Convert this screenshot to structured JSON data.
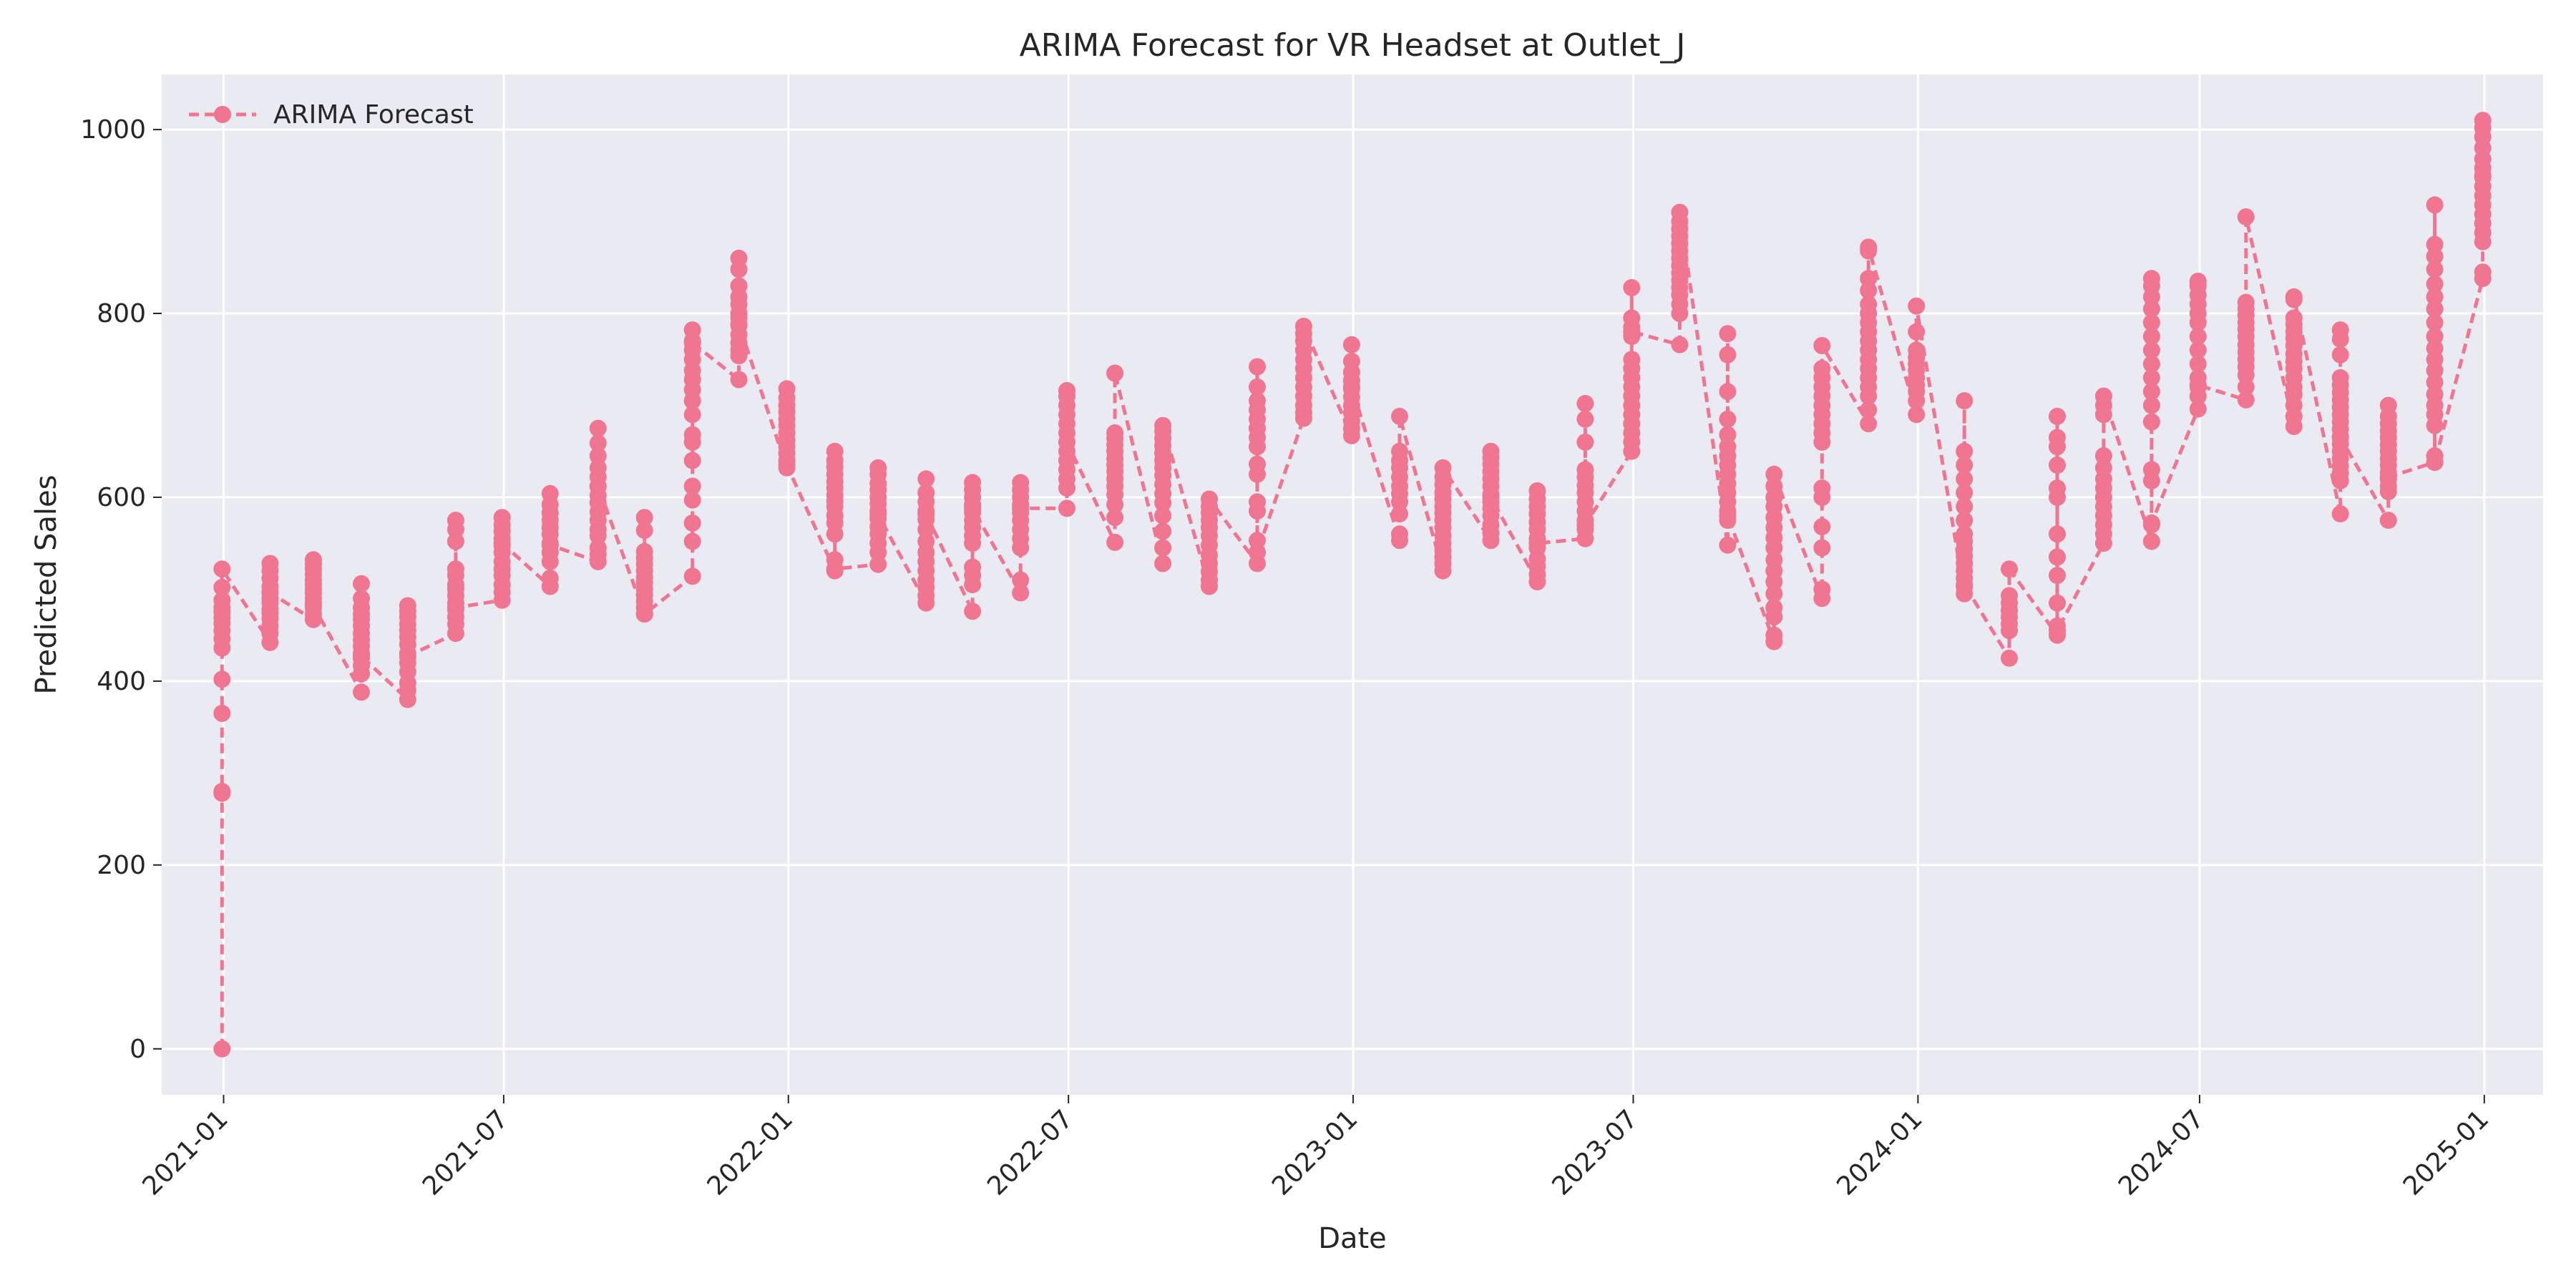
{
  "chart_data": {
    "type": "line",
    "title": "ARIMA Forecast for VR Headset at Outlet_J",
    "xlabel": "Date",
    "ylabel": "Predicted Sales",
    "x_ticks": [
      "2021-01",
      "2021-07",
      "2022-01",
      "2022-07",
      "2023-01",
      "2023-07",
      "2024-01",
      "2024-07",
      "2025-01"
    ],
    "y_ticks": [
      "0",
      "200",
      "400",
      "600",
      "800",
      "1000"
    ],
    "xlim": [
      "2020-11-22",
      "2025-02-08"
    ],
    "ylim": [
      -50,
      1060
    ],
    "grid": true,
    "legend_position": "top-left",
    "series": [
      {
        "name": "ARIMA Forecast",
        "color": "#F07590",
        "marker": "circle",
        "line_style": "dashed",
        "points": [
          {
            "date": "2020-12-31",
            "values": [
              0,
              280,
              278,
              365,
              402,
              436,
              446,
              455,
              463,
              469,
              475,
              480,
              488,
              502,
              522
            ]
          },
          {
            "date": "2021-01-31",
            "values": [
              442,
              452,
              460,
              468,
              474,
              478,
              485,
              490,
              497,
              503,
              512,
              520,
              528,
              496
            ]
          },
          {
            "date": "2021-02-28",
            "values": [
              467,
              473,
              480,
              485,
              490,
              496,
              500,
              505,
              510,
              516,
              522,
              527,
              532,
              482
            ]
          },
          {
            "date": "2021-03-31",
            "values": [
              388,
              408,
              417,
              425,
              430,
              438,
              445,
              452,
              460,
              467,
              473,
              480,
              490,
              506,
              427
            ]
          },
          {
            "date": "2021-04-30",
            "values": [
              380,
              390,
              398,
              410,
              420,
              430,
              440,
              448,
              455,
              462,
              470,
              476,
              482,
              427
            ]
          },
          {
            "date": "2021-05-31",
            "values": [
              452,
              462,
              470,
              478,
              485,
              493,
              500,
              505,
              515,
              522,
              552,
              565,
              575,
              480
            ]
          },
          {
            "date": "2021-06-30",
            "values": [
              488,
              497,
              505,
              515,
              522,
              530,
              540,
              547,
              555,
              563,
              570,
              578,
              550
            ]
          },
          {
            "date": "2021-07-31",
            "values": [
              503,
              512,
              530,
              540,
              550,
              560,
              567,
              575,
              583,
              592,
              604,
              548
            ]
          },
          {
            "date": "2021-08-31",
            "values": [
              530,
              538,
              545,
              558,
              565,
              575,
              584,
              594,
              602,
              612,
              622,
              632,
              645,
              659,
              675,
              612
            ]
          },
          {
            "date": "2021-09-30",
            "values": [
              473,
              480,
              487,
              494,
              500,
              507,
              513,
              520,
              527,
              534,
              541,
              564,
              578,
              473
            ]
          },
          {
            "date": "2021-10-31",
            "values": [
              514,
              552,
              572,
              597,
              612,
              640,
              660,
              668,
              690,
              705,
              717,
              728,
              738,
              750,
              760,
              770,
              782,
              768
            ]
          },
          {
            "date": "2021-11-30",
            "values": [
              728,
              754,
              760,
              768,
              777,
              787,
              795,
              800,
              810,
              818,
              830,
              848,
              860,
              788
            ]
          },
          {
            "date": "2021-12-31",
            "values": [
              632,
              640,
              648,
              655,
              662,
              670,
              678,
              685,
              693,
              700,
              708,
              718,
              635
            ]
          },
          {
            "date": "2022-01-31",
            "values": [
              520,
              532,
              560,
              572,
              580,
              590,
              596,
              602,
              610,
              617,
              625,
              633,
              640,
              650,
              522
            ]
          },
          {
            "date": "2022-02-28",
            "values": [
              527,
              540,
              550,
              560,
              568,
              577,
              585,
              593,
              600,
              608,
              615,
              625,
              632,
              581
            ]
          },
          {
            "date": "2022-03-31",
            "values": [
              485,
              493,
              502,
              510,
              520,
              530,
              540,
              552,
              565,
              576,
              585,
              595,
              605,
              620,
              582
            ]
          },
          {
            "date": "2022-04-30",
            "values": [
              476,
              505,
              515,
              524,
              550,
              558,
              567,
              575,
              584,
              592,
              600,
              608,
              616,
              588
            ]
          },
          {
            "date": "2022-05-31",
            "values": [
              496,
              510,
              545,
              555,
              565,
              575,
              583,
              592,
              600,
              608,
              616,
              588
            ]
          },
          {
            "date": "2022-06-30",
            "values": [
              588,
              610,
              620,
              630,
              640,
              650,
              660,
              670,
              680,
              690,
              700,
              710,
              716,
              660
            ]
          },
          {
            "date": "2022-07-31",
            "values": [
              551,
              578,
              592,
              603,
              612,
              620,
              628,
              635,
              642,
              650,
              657,
              664,
              670,
              735
            ]
          },
          {
            "date": "2022-08-31",
            "values": [
              528,
              545,
              563,
              580,
              594,
              604,
              614,
              624,
              632,
              640,
              648,
              656,
              664,
              672,
              678
            ]
          },
          {
            "date": "2022-09-30",
            "values": [
              503,
              510,
              519,
              528,
              537,
              548,
              558,
              567,
              575,
              583,
              590,
              598
            ]
          },
          {
            "date": "2022-10-31",
            "values": [
              528,
              540,
              553,
              585,
              595,
              625,
              636,
              655,
              665,
              675,
              685,
              695,
              705,
              720,
              742,
              540
            ]
          },
          {
            "date": "2022-11-30",
            "values": [
              686,
              692,
              700,
              710,
              720,
              730,
              740,
              750,
              760,
              770,
              778,
              786
            ]
          },
          {
            "date": "2022-12-31",
            "values": [
              667,
              675,
              683,
              692,
              700,
              709,
              718,
              727,
              736,
              748,
              766,
              720
            ]
          },
          {
            "date": "2023-01-31",
            "values": [
              553,
              560,
              582,
              595,
              604,
              612,
              622,
              632,
              640,
              650,
              688
            ]
          },
          {
            "date": "2023-02-28",
            "values": [
              520,
              528,
              535,
              542,
              550,
              558,
              567,
              575,
              583,
              590,
              598,
              605,
              614,
              622,
              632
            ]
          },
          {
            "date": "2023-03-31",
            "values": [
              553,
              561,
              570,
              580,
              588,
              595,
              603,
              612,
              620,
              628,
              636,
              643,
              650,
              600
            ]
          },
          {
            "date": "2023-04-30",
            "values": [
              508,
              516,
              525,
              533,
              545,
              555,
              565,
              573,
              582,
              590,
              598,
              607,
              550
            ]
          },
          {
            "date": "2023-05-31",
            "values": [
              555,
              565,
              575,
              585,
              595,
              605,
              613,
              622,
              630,
              660,
              685,
              702,
              570
            ]
          },
          {
            "date": "2023-06-30",
            "values": [
              650,
              660,
              670,
              680,
              690,
              700,
              710,
              720,
              730,
              740,
              750,
              775,
              785,
              795,
              828,
              780
            ]
          },
          {
            "date": "2023-07-31",
            "values": [
              766,
              800,
              810,
              820,
              828,
              836,
              844,
              852,
              860,
              868,
              876,
              884,
              892,
              900,
              910
            ]
          },
          {
            "date": "2023-08-31",
            "values": [
              548,
              575,
              585,
              595,
              605,
              615,
              625,
              635,
              645,
              655,
              668,
              685,
              715,
              755,
              778,
              580
            ]
          },
          {
            "date": "2023-09-30",
            "values": [
              443,
              450,
              470,
              480,
              495,
              508,
              520,
              532,
              545,
              556,
              567,
              578,
              590,
              600,
              612,
              625
            ]
          },
          {
            "date": "2023-10-31",
            "values": [
              490,
              500,
              545,
              568,
              600,
              610,
              660,
              670,
              680,
              690,
              700,
              710,
              720,
              730,
              740,
              765
            ]
          },
          {
            "date": "2023-11-30",
            "values": [
              680,
              695,
              710,
              720,
              730,
              740,
              750,
              760,
              770,
              780,
              790,
              800,
              810,
              825,
              838,
              868,
              872
            ]
          },
          {
            "date": "2023-12-31",
            "values": [
              690,
              705,
              715,
              722,
              730,
              738,
              745,
              752,
              760,
              780,
              808
            ]
          },
          {
            "date": "2024-01-31",
            "values": [
              495,
              503,
              512,
              520,
              528,
              536,
              544,
              552,
              560,
              575,
              590,
              605,
              620,
              635,
              650,
              705,
              505
            ]
          },
          {
            "date": "2024-02-29",
            "values": [
              425,
              455,
              462,
              470,
              477,
              485,
              493,
              522
            ]
          },
          {
            "date": "2024-03-31",
            "values": [
              450,
              460,
              485,
              515,
              535,
              560,
              600,
              610,
              635,
              655,
              665,
              688,
              455
            ]
          },
          {
            "date": "2024-04-30",
            "values": [
              550,
              560,
              570,
              580,
              590,
              600,
              610,
              620,
              632,
              645,
              690,
              700,
              710
            ]
          },
          {
            "date": "2024-05-31",
            "values": [
              552,
              570,
              618,
              630,
              682,
              700,
              715,
              730,
              745,
              760,
              775,
              790,
              805,
              818,
              830,
              838,
              572
            ]
          },
          {
            "date": "2024-06-30",
            "values": [
              696,
              710,
              720,
              730,
              745,
              760,
              775,
              790,
              800,
              810,
              820,
              830,
              835,
              722
            ]
          },
          {
            "date": "2024-07-31",
            "values": [
              706,
              720,
              733,
              742,
              750,
              758,
              766,
              775,
              783,
              790,
              798,
              805,
              812,
              905
            ]
          },
          {
            "date": "2024-08-31",
            "values": [
              677,
              688,
              700,
              712,
              720,
              730,
              740,
              748,
              756,
              765,
              773,
              780,
              788,
              795,
              815,
              818
            ]
          },
          {
            "date": "2024-09-30",
            "values": [
              582,
              618,
              626,
              634,
              642,
              650,
              658,
              666,
              674,
              682,
              690,
              698,
              706,
              714,
              722,
              730,
              755,
              772,
              782,
              665
            ]
          },
          {
            "date": "2024-10-31",
            "values": [
              575,
              606,
              612,
              620,
              627,
              635,
              642,
              650,
              657,
              665,
              672,
              680,
              688,
              700,
              622
            ]
          },
          {
            "date": "2024-11-30",
            "values": [
              638,
              645,
              678,
              690,
              700,
              712,
              725,
              738,
              750,
              762,
              775,
              790,
              805,
              818,
              832,
              848,
              862,
              875,
              918,
              638
            ]
          },
          {
            "date": "2024-12-31",
            "values": [
              838,
              845,
              878,
              888,
              898,
              908,
              918,
              928,
              938,
              948,
              958,
              968,
              980,
              992,
              1002,
              1010,
              950
            ]
          }
        ]
      }
    ]
  }
}
